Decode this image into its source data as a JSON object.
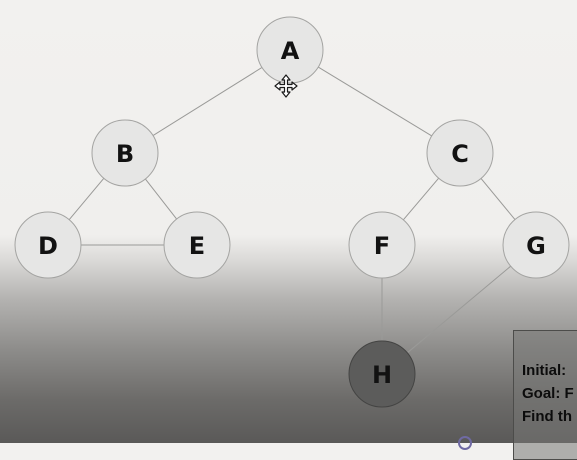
{
  "graph": {
    "nodes": [
      {
        "id": "A",
        "label": "A"
      },
      {
        "id": "B",
        "label": "B"
      },
      {
        "id": "C",
        "label": "C"
      },
      {
        "id": "D",
        "label": "D"
      },
      {
        "id": "E",
        "label": "E"
      },
      {
        "id": "F",
        "label": "F"
      },
      {
        "id": "G",
        "label": "G"
      },
      {
        "id": "H",
        "label": "H"
      }
    ],
    "edges": [
      {
        "from": "A",
        "to": "B"
      },
      {
        "from": "A",
        "to": "C"
      },
      {
        "from": "B",
        "to": "D"
      },
      {
        "from": "B",
        "to": "E"
      },
      {
        "from": "D",
        "to": "E"
      },
      {
        "from": "C",
        "to": "F"
      },
      {
        "from": "C",
        "to": "G"
      },
      {
        "from": "F",
        "to": "H"
      },
      {
        "from": "G",
        "to": "H"
      }
    ],
    "colors": {
      "node_fill": "#e6e6e5",
      "node_stroke": "#a4a4a2",
      "node_fill_dark": "#5c5c5b",
      "node_stroke_dark": "#444443",
      "edge": "#9a9a98"
    }
  },
  "info_panel": {
    "lines": [
      "Initial:",
      "Goal: F",
      "Find th"
    ]
  },
  "cursor": {
    "icon": "move-cursor-icon"
  }
}
